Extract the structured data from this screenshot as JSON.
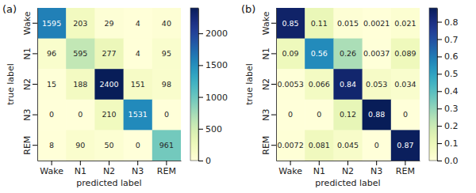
{
  "chart_data": [
    {
      "type": "heatmap",
      "title": "(a)",
      "categories": [
        "Wake",
        "N1",
        "N2",
        "N3",
        "REM"
      ],
      "y_categories": [
        "Wake",
        "N1",
        "N2",
        "N3",
        "REM"
      ],
      "x_label": "predicted label",
      "y_label": "true label",
      "cells": [
        [
          1595,
          203,
          29,
          4,
          40
        ],
        [
          96,
          595,
          277,
          4,
          95
        ],
        [
          15,
          188,
          2400,
          151,
          98
        ],
        [
          0,
          0,
          210,
          1531,
          0
        ],
        [
          8,
          90,
          50,
          0,
          961
        ]
      ],
      "colorbar": {
        "range": [
          0,
          2400
        ],
        "ticks": [
          0,
          500,
          1000,
          1500,
          2000
        ]
      },
      "color": "YlGnBu",
      "data_labels": true
    },
    {
      "type": "heatmap",
      "title": "(b)",
      "categories": [
        "Wake",
        "N1",
        "N2",
        "N3",
        "REM"
      ],
      "y_categories": [
        "Wake",
        "N1",
        "N2",
        "N3",
        "REM"
      ],
      "x_label": "predicted label",
      "y_label": "true label",
      "cells": [
        [
          0.85,
          0.11,
          0.015,
          0.0021,
          0.021
        ],
        [
          0.09,
          0.56,
          0.26,
          0.0037,
          0.089
        ],
        [
          0.0053,
          0.066,
          0.84,
          0.053,
          0.034
        ],
        [
          0,
          0,
          0.12,
          0.88,
          0
        ],
        [
          0.0072,
          0.081,
          0.045,
          0,
          0.87
        ]
      ],
      "colorbar": {
        "range": [
          0,
          0.88
        ],
        "ticks": [
          {
            "value": 0,
            "label": "0.0"
          },
          0.1,
          0.2,
          0.3,
          0.4,
          0.5,
          0.6,
          0.7,
          0.8
        ]
      },
      "color": "YlGnBu",
      "data_labels": true
    }
  ]
}
